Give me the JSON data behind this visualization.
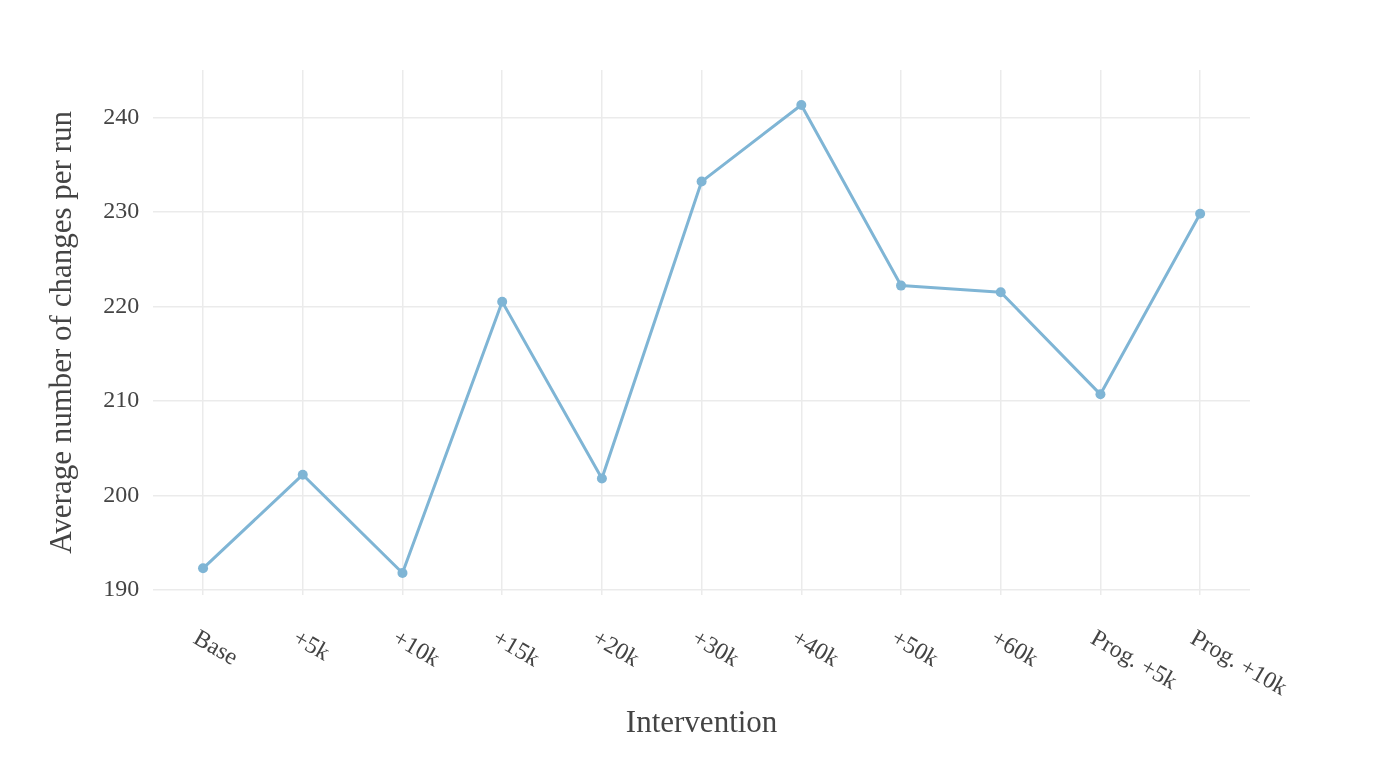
{
  "chart_data": {
    "type": "line",
    "xlabel": "Intervention",
    "ylabel": "Average number of changes per run",
    "categories": [
      "Base",
      "+5k",
      "+10k",
      "+15k",
      "+20k",
      "+30k",
      "+40k",
      "+50k",
      "+60k",
      "Prog. +5k",
      "Prog. +10k"
    ],
    "series": [
      {
        "color": "#7fb5d5",
        "values": [
          192.3,
          202.2,
          191.8,
          220.5,
          201.8,
          233.2,
          241.3,
          222.2,
          221.5,
          210.7,
          229.8
        ]
      }
    ],
    "ylim": [
      189.5,
      245
    ],
    "yticks": [
      190,
      200,
      210,
      220,
      230,
      240
    ],
    "grid": true,
    "marker": "circle",
    "line_style": "solid",
    "legend": false
  }
}
